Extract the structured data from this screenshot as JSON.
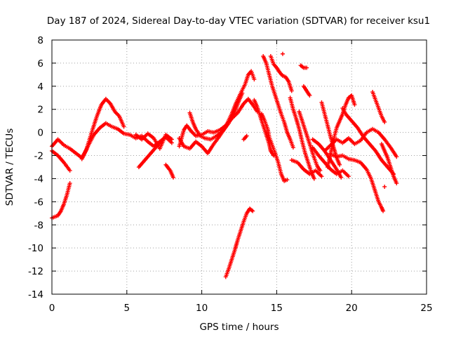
{
  "chart_data": {
    "type": "scatter",
    "title": "Day 187 of 2024, Sidereal Day-to-day VTEC variation (SDTVAR) for receiver ksu1",
    "xlabel": "GPS time / hours",
    "ylabel": "SDTVAR / TECUs",
    "xlim": [
      0,
      25
    ],
    "ylim": [
      -14,
      8
    ],
    "xticks": [
      0,
      5,
      10,
      15,
      20,
      25
    ],
    "yticks": [
      -14,
      -12,
      -10,
      -8,
      -6,
      -4,
      -2,
      0,
      2,
      4,
      6,
      8
    ],
    "grid": true,
    "marker": "+",
    "color": "#ff0000",
    "series": [
      {
        "name": "track-a",
        "points": [
          [
            0,
            -1.2
          ],
          [
            0.4,
            -0.6
          ],
          [
            0.8,
            -1.1
          ],
          [
            1.2,
            -1.4
          ],
          [
            1.6,
            -1.8
          ],
          [
            2.0,
            -2.2
          ],
          [
            2.3,
            -1.5
          ],
          [
            2.7,
            0.2
          ],
          [
            3.0,
            1.4
          ],
          [
            3.3,
            2.4
          ],
          [
            3.6,
            2.9
          ],
          [
            3.9,
            2.5
          ],
          [
            4.2,
            1.8
          ],
          [
            4.5,
            1.4
          ],
          [
            4.8,
            0.5
          ]
        ]
      },
      {
        "name": "track-b",
        "points": [
          [
            0,
            -1.6
          ],
          [
            0.4,
            -2.0
          ],
          [
            0.8,
            -2.6
          ],
          [
            1.2,
            -3.3
          ]
        ]
      },
      {
        "name": "track-c",
        "points": [
          [
            0,
            -7.4
          ],
          [
            0.4,
            -7.2
          ],
          [
            0.6,
            -6.8
          ],
          [
            0.8,
            -6.2
          ],
          [
            1.0,
            -5.4
          ],
          [
            1.2,
            -4.4
          ]
        ]
      },
      {
        "name": "track-d",
        "points": [
          [
            2.0,
            -2.3
          ],
          [
            2.4,
            -1.2
          ],
          [
            2.8,
            -0.2
          ],
          [
            3.2,
            0.4
          ],
          [
            3.6,
            0.8
          ],
          [
            4.0,
            0.5
          ],
          [
            4.4,
            0.3
          ],
          [
            4.8,
            -0.1
          ],
          [
            5.2,
            -0.2
          ],
          [
            5.6,
            -0.5
          ],
          [
            6.0,
            -0.3
          ],
          [
            6.4,
            -0.8
          ],
          [
            6.8,
            -1.2
          ],
          [
            7.2,
            -0.8
          ],
          [
            7.6,
            -0.4
          ],
          [
            8.0,
            -0.9
          ]
        ]
      },
      {
        "name": "track-e",
        "points": [
          [
            5.6,
            -0.2
          ],
          [
            6.0,
            -0.6
          ],
          [
            6.4,
            -0.1
          ],
          [
            6.8,
            -0.5
          ],
          [
            7.2,
            -1.4
          ],
          [
            7.6,
            -0.2
          ],
          [
            8.0,
            -0.6
          ]
        ]
      },
      {
        "name": "track-f",
        "points": [
          [
            5.8,
            -3.0
          ],
          [
            6.2,
            -2.4
          ],
          [
            6.6,
            -1.8
          ],
          [
            7.0,
            -1.2
          ],
          [
            7.4,
            -0.6
          ]
        ]
      },
      {
        "name": "track-g",
        "points": [
          [
            7.6,
            -2.8
          ],
          [
            7.9,
            -3.3
          ],
          [
            8.1,
            -3.9
          ]
        ]
      },
      {
        "name": "track-h",
        "points": [
          [
            8.5,
            -1.2
          ],
          [
            8.8,
            0.2
          ],
          [
            9.0,
            0.6
          ],
          [
            9.3,
            0.1
          ],
          [
            9.6,
            -0.3
          ],
          [
            10.0,
            -0.2
          ],
          [
            10.4,
            0.1
          ],
          [
            10.8,
            0.0
          ],
          [
            11.2,
            0.2
          ],
          [
            11.6,
            0.6
          ],
          [
            12.0,
            1.2
          ],
          [
            12.4,
            1.7
          ],
          [
            12.8,
            2.5
          ],
          [
            13.1,
            2.9
          ],
          [
            13.4,
            2.4
          ],
          [
            13.7,
            1.8
          ]
        ]
      },
      {
        "name": "track-i",
        "points": [
          [
            8.5,
            -0.5
          ],
          [
            8.8,
            -1.2
          ],
          [
            9.2,
            -1.4
          ],
          [
            9.6,
            -0.8
          ],
          [
            10.0,
            -1.2
          ],
          [
            10.4,
            -1.8
          ],
          [
            10.8,
            -1.0
          ],
          [
            11.2,
            -0.3
          ],
          [
            11.6,
            0.5
          ],
          [
            12.0,
            1.6
          ],
          [
            12.3,
            2.6
          ],
          [
            12.6,
            3.4
          ],
          [
            12.9,
            4.2
          ],
          [
            13.1,
            5.0
          ],
          [
            13.3,
            5.3
          ],
          [
            13.5,
            4.6
          ]
        ]
      },
      {
        "name": "track-j",
        "points": [
          [
            9.2,
            1.7
          ],
          [
            9.4,
            0.9
          ],
          [
            9.6,
            0.3
          ],
          [
            9.9,
            -0.3
          ],
          [
            10.2,
            -0.5
          ],
          [
            10.6,
            -0.6
          ],
          [
            11.0,
            -0.3
          ],
          [
            11.4,
            0.1
          ],
          [
            11.8,
            0.8
          ],
          [
            12.2,
            1.8
          ],
          [
            12.5,
            2.8
          ],
          [
            12.7,
            3.4
          ]
        ]
      },
      {
        "name": "track-k",
        "points": [
          [
            11.6,
            -12.5
          ],
          [
            11.8,
            -11.8
          ],
          [
            12.0,
            -11.0
          ],
          [
            12.2,
            -10.2
          ],
          [
            12.4,
            -9.3
          ],
          [
            12.6,
            -8.5
          ],
          [
            12.8,
            -7.7
          ],
          [
            13.0,
            -7.0
          ],
          [
            13.2,
            -6.6
          ],
          [
            13.4,
            -6.8
          ]
        ]
      },
      {
        "name": "track-l",
        "points": [
          [
            13.5,
            2.8
          ],
          [
            13.7,
            2.2
          ],
          [
            13.9,
            1.4
          ],
          [
            14.1,
            0.6
          ],
          [
            14.3,
            -0.2
          ],
          [
            14.5,
            -1.0
          ],
          [
            14.6,
            -1.6
          ],
          [
            14.8,
            -2.0
          ]
        ]
      },
      {
        "name": "track-m",
        "points": [
          [
            14.0,
            1.6
          ],
          [
            14.2,
            1.0
          ],
          [
            14.4,
            0.3
          ],
          [
            14.5,
            -0.4
          ],
          [
            14.7,
            -1.1
          ],
          [
            14.9,
            -1.8
          ],
          [
            15.1,
            -2.6
          ],
          [
            15.3,
            -3.6
          ],
          [
            15.5,
            -4.2
          ],
          [
            15.7,
            -4.1
          ]
        ]
      },
      {
        "name": "track-n",
        "points": [
          [
            14.1,
            6.6
          ],
          [
            14.3,
            6.0
          ],
          [
            14.5,
            5.0
          ],
          [
            14.7,
            4.0
          ],
          [
            14.9,
            3.2
          ],
          [
            15.1,
            2.4
          ],
          [
            15.3,
            1.6
          ],
          [
            15.5,
            0.9
          ],
          [
            15.7,
            0.0
          ],
          [
            15.9,
            -0.6
          ],
          [
            16.1,
            -1.3
          ]
        ]
      },
      {
        "name": "track-o",
        "points": [
          [
            14.6,
            6.6
          ],
          [
            14.8,
            5.9
          ],
          [
            15.0,
            5.6
          ],
          [
            15.2,
            5.2
          ],
          [
            15.4,
            4.9
          ],
          [
            15.6,
            4.8
          ],
          [
            15.8,
            4.4
          ],
          [
            16.0,
            3.6
          ]
        ]
      },
      {
        "name": "track-p",
        "points": [
          [
            15.9,
            3.0
          ],
          [
            16.1,
            2.0
          ],
          [
            16.3,
            1.2
          ],
          [
            16.5,
            0.3
          ],
          [
            16.7,
            -0.8
          ],
          [
            16.9,
            -1.8
          ],
          [
            17.1,
            -2.6
          ],
          [
            17.3,
            -3.4
          ],
          [
            17.5,
            -4.0
          ]
        ]
      },
      {
        "name": "track-q",
        "points": [
          [
            16.0,
            -2.4
          ],
          [
            16.4,
            -2.6
          ],
          [
            16.8,
            -3.2
          ],
          [
            17.2,
            -3.6
          ],
          [
            17.6,
            -3.3
          ],
          [
            18.0,
            -3.8
          ]
        ]
      },
      {
        "name": "track-r",
        "points": [
          [
            16.6,
            5.8
          ],
          [
            16.8,
            5.6
          ],
          [
            17.0,
            5.6
          ]
        ]
      },
      {
        "name": "track-s",
        "points": [
          [
            16.5,
            1.8
          ],
          [
            16.7,
            1.0
          ],
          [
            16.9,
            0.2
          ],
          [
            17.1,
            -0.6
          ],
          [
            17.3,
            -1.4
          ],
          [
            17.5,
            -2.2
          ],
          [
            17.7,
            -2.9
          ],
          [
            17.9,
            -3.3
          ]
        ]
      },
      {
        "name": "track-t",
        "points": [
          [
            16.8,
            4.0
          ],
          [
            17.0,
            3.6
          ],
          [
            17.2,
            3.2
          ]
        ]
      },
      {
        "name": "track-u",
        "points": [
          [
            17.4,
            -0.6
          ],
          [
            17.8,
            -1.0
          ],
          [
            18.2,
            -1.6
          ],
          [
            18.6,
            -2.4
          ],
          [
            19.0,
            -3.2
          ],
          [
            19.3,
            -3.9
          ]
        ]
      },
      {
        "name": "track-v",
        "points": [
          [
            17.4,
            -1.3
          ],
          [
            17.8,
            -2.0
          ],
          [
            18.2,
            -2.6
          ],
          [
            18.6,
            -3.2
          ],
          [
            19.0,
            -3.6
          ],
          [
            19.4,
            -3.3
          ],
          [
            19.8,
            -3.8
          ]
        ]
      },
      {
        "name": "track-w",
        "points": [
          [
            18.0,
            2.6
          ],
          [
            18.2,
            1.6
          ],
          [
            18.4,
            0.6
          ],
          [
            18.6,
            -0.4
          ],
          [
            18.8,
            -1.3
          ],
          [
            19.0,
            -2.2
          ],
          [
            19.2,
            -2.8
          ]
        ]
      },
      {
        "name": "track-x",
        "points": [
          [
            18.4,
            -3.0
          ],
          [
            18.6,
            -1.8
          ],
          [
            18.8,
            -0.6
          ],
          [
            19.0,
            0.4
          ],
          [
            19.2,
            1.0
          ],
          [
            19.4,
            1.6
          ],
          [
            19.6,
            2.4
          ],
          [
            19.8,
            3.0
          ],
          [
            20.0,
            3.2
          ],
          [
            20.2,
            2.4
          ]
        ]
      },
      {
        "name": "track-y",
        "points": [
          [
            19.4,
            2.1
          ],
          [
            19.6,
            1.6
          ],
          [
            20.0,
            1.0
          ],
          [
            20.4,
            0.4
          ],
          [
            20.8,
            -0.4
          ],
          [
            21.2,
            -1.0
          ],
          [
            21.6,
            -1.6
          ],
          [
            22.0,
            -2.4
          ],
          [
            22.4,
            -3.0
          ],
          [
            22.8,
            -3.6
          ]
        ]
      },
      {
        "name": "track-z",
        "points": [
          [
            18.6,
            -1.9
          ],
          [
            19.0,
            -2.1
          ],
          [
            19.4,
            -2.0
          ],
          [
            19.8,
            -2.3
          ],
          [
            20.2,
            -2.4
          ],
          [
            20.6,
            -2.6
          ],
          [
            21.0,
            -3.2
          ],
          [
            21.3,
            -4.0
          ],
          [
            21.6,
            -5.2
          ],
          [
            21.8,
            -6.0
          ],
          [
            22.0,
            -6.5
          ],
          [
            22.1,
            -6.8
          ]
        ]
      },
      {
        "name": "track-aa",
        "points": [
          [
            18.2,
            -1.6
          ],
          [
            18.6,
            -1.1
          ],
          [
            19.0,
            -0.6
          ],
          [
            19.4,
            -0.9
          ],
          [
            19.8,
            -0.5
          ],
          [
            20.2,
            -1.0
          ],
          [
            20.6,
            -0.7
          ],
          [
            21.0,
            0.0
          ],
          [
            21.4,
            0.3
          ],
          [
            21.8,
            0.0
          ],
          [
            22.2,
            -0.6
          ],
          [
            22.6,
            -1.3
          ],
          [
            23.0,
            -2.1
          ]
        ]
      },
      {
        "name": "track-ab",
        "points": [
          [
            21.4,
            3.5
          ],
          [
            21.6,
            2.8
          ],
          [
            21.8,
            2.1
          ],
          [
            22.0,
            1.4
          ],
          [
            22.2,
            0.9
          ]
        ]
      },
      {
        "name": "track-ac",
        "points": [
          [
            22.0,
            -1.0
          ],
          [
            22.2,
            -1.6
          ],
          [
            22.4,
            -2.2
          ],
          [
            22.6,
            -3.0
          ],
          [
            22.8,
            -3.8
          ],
          [
            23.0,
            -4.4
          ]
        ]
      },
      {
        "name": "track-ad",
        "points": [
          [
            12.8,
            -0.6
          ],
          [
            13.0,
            -0.3
          ]
        ]
      },
      {
        "name": "track-ae",
        "points": [
          [
            22.2,
            -4.7
          ]
        ]
      },
      {
        "name": "track-af",
        "points": [
          [
            15.4,
            6.8
          ]
        ]
      }
    ]
  }
}
